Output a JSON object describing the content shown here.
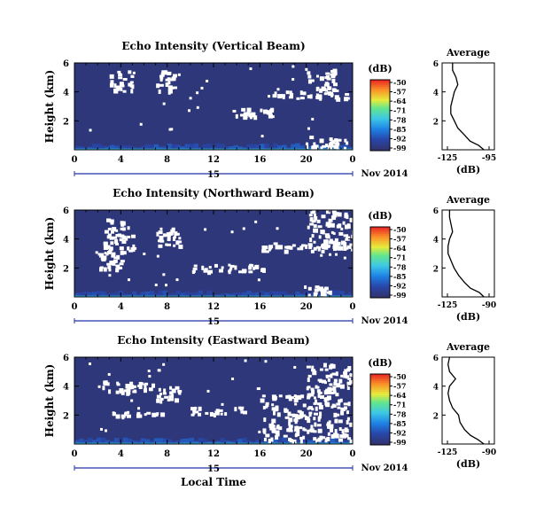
{
  "figure": {
    "xlabel": "Local Time",
    "date_label": "Nov 2014",
    "colorbar_unit": "(dB)",
    "colorbar_ticks": [
      "-50",
      "-57",
      "-64",
      "-71",
      "-78",
      "-85",
      "-92",
      "-99"
    ],
    "average_xlabel": "(dB)"
  },
  "panels": [
    {
      "title": "Echo Intensity (Vertical Beam)",
      "ylabel": "Height (km)",
      "date_tick": "15",
      "avg_title": "Average",
      "avg_xticks": [
        "-125",
        "-95"
      ]
    },
    {
      "title": "Echo Intensity (Northward Beam)",
      "ylabel": "Height (km)",
      "date_tick": "15",
      "avg_title": "Average",
      "avg_xticks": [
        "-125",
        "-90"
      ]
    },
    {
      "title": "Echo Intensity (Eastward Beam)",
      "ylabel": "Height (km)",
      "date_tick": "15",
      "avg_title": "Average",
      "avg_xticks": [
        "-125",
        "-90"
      ]
    }
  ],
  "chart_data": [
    {
      "type": "heatmap",
      "title": "Echo Intensity (Vertical Beam)",
      "ylabel": "Height (km)",
      "x_ticks": [
        "0",
        "4",
        "8",
        "12",
        "16",
        "20",
        "0"
      ],
      "y_ticks": [
        "6",
        "4",
        "2",
        ""
      ],
      "xlim": [
        0,
        24
      ],
      "ylim": [
        0,
        6
      ],
      "colorbar_range_db": [
        -99,
        -50
      ],
      "background_level_db": -95,
      "near_ground_level_db": -88,
      "white_speckle_regions": [
        {
          "t": [
            7.0,
            8.5
          ],
          "h": [
            4.0,
            5.5
          ]
        },
        {
          "t": [
            17.0,
            23.5
          ],
          "h": [
            3.6,
            4.1
          ]
        },
        {
          "t": [
            20.0,
            22.5
          ],
          "h": [
            4.0,
            5.6
          ]
        },
        {
          "t": [
            19.5,
            23.5
          ],
          "h": [
            0.2,
            1.0
          ]
        },
        {
          "t": [
            3.0,
            5.0
          ],
          "h": [
            4.0,
            5.5
          ]
        },
        {
          "t": [
            13.5,
            17.0
          ],
          "h": [
            2.3,
            3.0
          ]
        }
      ],
      "average_profile": {
        "x_db": [
          -119,
          -119,
          -117,
          -116,
          -118,
          -119,
          -120,
          -120,
          -118,
          -116,
          -112,
          -109,
          -104,
          -101
        ],
        "height_km": [
          6.0,
          5.5,
          5.0,
          4.5,
          4.0,
          3.5,
          3.0,
          2.5,
          2.0,
          1.5,
          1.0,
          0.6,
          0.3,
          0.0
        ],
        "xlim": [
          -125,
          -95
        ],
        "ylim": [
          0,
          6
        ],
        "y_ticks": [
          "6",
          "4",
          "2"
        ]
      }
    },
    {
      "type": "heatmap",
      "title": "Echo Intensity (Northward Beam)",
      "ylabel": "Height (km)",
      "x_ticks": [
        "0",
        "4",
        "8",
        "12",
        "16",
        "20",
        "0"
      ],
      "y_ticks": [
        "6",
        "4",
        "2",
        ""
      ],
      "xlim": [
        0,
        24
      ],
      "ylim": [
        0,
        6
      ],
      "colorbar_range_db": [
        -99,
        -50
      ],
      "background_level_db": -95,
      "near_ground_level_db": -90,
      "white_speckle_regions": [
        {
          "t": [
            2.5,
            5.0
          ],
          "h": [
            3.0,
            5.5
          ]
        },
        {
          "t": [
            7.0,
            9.0
          ],
          "h": [
            3.6,
            4.8
          ]
        },
        {
          "t": [
            16.0,
            24.0
          ],
          "h": [
            3.2,
            3.8
          ]
        },
        {
          "t": [
            20.0,
            24.0
          ],
          "h": [
            3.5,
            6.0
          ]
        },
        {
          "t": [
            19.5,
            22.0
          ],
          "h": [
            0.2,
            0.8
          ]
        },
        {
          "t": [
            10.0,
            17.0
          ],
          "h": [
            1.8,
            2.3
          ]
        },
        {
          "t": [
            2.0,
            4.0
          ],
          "h": [
            2.0,
            3.2
          ]
        }
      ],
      "average_profile": {
        "x_db": [
          -120,
          -120,
          -119,
          -118,
          -120,
          -121,
          -121,
          -119,
          -117,
          -114,
          -110,
          -106,
          -100,
          -97
        ],
        "height_km": [
          6.0,
          5.5,
          5.0,
          4.5,
          4.0,
          3.5,
          3.0,
          2.5,
          2.0,
          1.5,
          1.0,
          0.6,
          0.3,
          0.0
        ],
        "xlim": [
          -125,
          -90
        ],
        "ylim": [
          0,
          6
        ],
        "y_ticks": [
          "6",
          "4",
          "2"
        ]
      }
    },
    {
      "type": "heatmap",
      "title": "Echo Intensity (Eastward Beam)",
      "ylabel": "Height (km)",
      "x_ticks": [
        "0",
        "4",
        "8",
        "12",
        "16",
        "20",
        "0"
      ],
      "y_ticks": [
        "6",
        "4",
        "2",
        ""
      ],
      "xlim": [
        0,
        24
      ],
      "ylim": [
        0,
        6
      ],
      "colorbar_range_db": [
        -99,
        -50
      ],
      "background_level_db": -95,
      "near_ground_level_db": -88,
      "white_speckle_regions": [
        {
          "t": [
            7.0,
            9.0
          ],
          "h": [
            3.0,
            4.0
          ]
        },
        {
          "t": [
            3.0,
            8.0
          ],
          "h": [
            2.0,
            2.3
          ]
        },
        {
          "t": [
            10.0,
            15.0
          ],
          "h": [
            2.1,
            2.6
          ]
        },
        {
          "t": [
            16.0,
            24.0
          ],
          "h": [
            0.3,
            3.5
          ]
        },
        {
          "t": [
            20.0,
            24.0
          ],
          "h": [
            3.5,
            5.6
          ]
        },
        {
          "t": [
            2.0,
            7.0
          ],
          "h": [
            3.6,
            4.4
          ]
        }
      ],
      "average_profile": {
        "x_db": [
          -120,
          -121,
          -120,
          -116,
          -120,
          -121,
          -120,
          -118,
          -114,
          -113,
          -110,
          -106,
          -101,
          -97
        ],
        "height_km": [
          6.0,
          5.5,
          5.0,
          4.5,
          4.0,
          3.5,
          3.0,
          2.5,
          2.0,
          1.5,
          1.0,
          0.6,
          0.3,
          0.0
        ],
        "xlim": [
          -125,
          -90
        ],
        "ylim": [
          0,
          6
        ],
        "y_ticks": [
          "6",
          "4",
          "2"
        ]
      }
    }
  ]
}
